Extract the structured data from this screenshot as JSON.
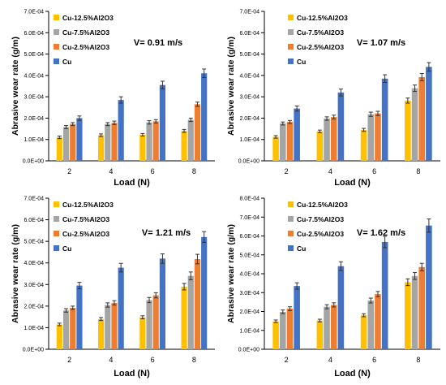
{
  "chart_data": [
    {
      "type": "bar",
      "categories": [
        "2",
        "4",
        "6",
        "8"
      ],
      "series": [
        {
          "name": "Cu-12.5%Al2O3",
          "values": [
            0.00011,
            0.00012,
            0.000122,
            0.00014
          ],
          "errors": [
            6e-06,
            6e-06,
            6e-06,
            7e-06
          ]
        },
        {
          "name": "Cu-7.5%Al2O3",
          "values": [
            0.000158,
            0.000172,
            0.00018,
            0.000192
          ],
          "errors": [
            7e-06,
            7e-06,
            8e-06,
            8e-06
          ]
        },
        {
          "name": "Cu-2.5%Al2O3",
          "values": [
            0.000172,
            0.000178,
            0.000185,
            0.000265
          ],
          "errors": [
            7e-06,
            8e-06,
            8e-06,
            1e-05
          ]
        },
        {
          "name": "Cu",
          "values": [
            0.0002,
            0.000285,
            0.000355,
            0.00041
          ],
          "errors": [
            1e-05,
            1.5e-05,
            1.8e-05,
            2e-05
          ]
        }
      ],
      "ylim": [
        0,
        0.0007
      ],
      "yticks": [
        "0.0E+00",
        "1.0E-04",
        "2.0E-04",
        "3.0E-04",
        "4.0E-04",
        "5.0E-04",
        "6.0E-04",
        "7.0E-04"
      ],
      "xlabel": "Load (N)",
      "ylabel": "Abrasive wear rate (g/m)",
      "annotation": "V= 0.91 m/s",
      "legend": "top-left",
      "grid": false
    },
    {
      "type": "bar",
      "categories": [
        "2",
        "4",
        "6",
        "8"
      ],
      "series": [
        {
          "name": "Cu-12.5%Al2O3",
          "values": [
            0.000112,
            0.000138,
            0.000145,
            0.000282
          ],
          "errors": [
            6e-06,
            6e-06,
            7e-06,
            1.2e-05
          ]
        },
        {
          "name": "Cu-7.5%Al2O3",
          "values": [
            0.000175,
            0.000198,
            0.000218,
            0.00034
          ],
          "errors": [
            7e-06,
            8e-06,
            1e-05,
            1.5e-05
          ]
        },
        {
          "name": "Cu-2.5%Al2O3",
          "values": [
            0.000182,
            0.000205,
            0.000222,
            0.000392
          ],
          "errors": [
            7e-06,
            9e-06,
            1e-05,
            1.7e-05
          ]
        },
        {
          "name": "Cu",
          "values": [
            0.000245,
            0.00032,
            0.000385,
            0.00044
          ],
          "errors": [
            1.2e-05,
            1.6e-05,
            1.8e-05,
            2e-05
          ]
        }
      ],
      "ylim": [
        0,
        0.0007
      ],
      "yticks": [
        "0.0E+00",
        "1.0E-04",
        "2.0E-04",
        "3.0E-04",
        "4.0E-04",
        "5.0E-04",
        "6.0E-04",
        "7.0E-04"
      ],
      "xlabel": "Load (N)",
      "ylabel": "Abrasive wear rate (g/m)",
      "annotation": "V= 1.07 m/s",
      "legend": "top-left",
      "grid": false
    },
    {
      "type": "bar",
      "categories": [
        "2",
        "4",
        "6",
        "8"
      ],
      "series": [
        {
          "name": "Cu-12.5%Al2O3",
          "values": [
            0.000115,
            0.00014,
            0.000148,
            0.00029
          ],
          "errors": [
            6e-06,
            7e-06,
            7e-06,
            1.5e-05
          ]
        },
        {
          "name": "Cu-7.5%Al2O3",
          "values": [
            0.00018,
            0.000205,
            0.000228,
            0.00034
          ],
          "errors": [
            8e-06,
            1e-05,
            1.2e-05,
            1.8e-05
          ]
        },
        {
          "name": "Cu-2.5%Al2O3",
          "values": [
            0.000192,
            0.000215,
            0.00025,
            0.000418
          ],
          "errors": [
            8e-06,
            1e-05,
            1.2e-05,
            2.2e-05
          ]
        },
        {
          "name": "Cu",
          "values": [
            0.000295,
            0.000378,
            0.00042,
            0.00052
          ],
          "errors": [
            1.5e-05,
            2e-05,
            2.2e-05,
            2.5e-05
          ]
        }
      ],
      "ylim": [
        0,
        0.0007
      ],
      "yticks": [
        "0.0E+00",
        "1.0E-04",
        "2.0E-04",
        "3.0E-04",
        "4.0E-04",
        "5.0E-04",
        "6.0E-04",
        "7.0E-04"
      ],
      "xlabel": "Load (N)",
      "ylabel": "Abrasive wear rate (g/m)",
      "annotation": "V= 1.21 m/s",
      "legend": "top-left",
      "grid": false
    },
    {
      "type": "bar",
      "categories": [
        "2",
        "4",
        "6",
        "8"
      ],
      "series": [
        {
          "name": "Cu-12.5%Al2O3",
          "values": [
            0.000148,
            0.000152,
            0.00018,
            0.000355
          ],
          "errors": [
            7e-06,
            7e-06,
            8e-06,
            1.8e-05
          ]
        },
        {
          "name": "Cu-7.5%Al2O3",
          "values": [
            0.000198,
            0.000225,
            0.000258,
            0.000388
          ],
          "errors": [
            1e-05,
            1.1e-05,
            1.3e-05,
            1.8e-05
          ]
        },
        {
          "name": "Cu-2.5%Al2O3",
          "values": [
            0.000215,
            0.000235,
            0.000292,
            0.000435
          ],
          "errors": [
            1e-05,
            1.1e-05,
            1.4e-05,
            2e-05
          ]
        },
        {
          "name": "Cu",
          "values": [
            0.000335,
            0.00044,
            0.000568,
            0.000655
          ],
          "errors": [
            1.7e-05,
            2.3e-05,
            3e-05,
            3.5e-05
          ]
        }
      ],
      "ylim": [
        0,
        0.0008
      ],
      "yticks": [
        "0.0E+00",
        "1.0E-04",
        "2.0E-04",
        "3.0E-04",
        "4.0E-04",
        "5.0E-04",
        "6.0E-04",
        "7.0E-04",
        "8.0E-04"
      ],
      "xlabel": "Load (N)",
      "ylabel": "Abrasive wear rate (g/m)",
      "annotation": "V= 1.62 m/s",
      "legend": "top-left",
      "grid": false
    }
  ],
  "colors": {
    "series": [
      "#FFC000",
      "#A5A5A5",
      "#ED7D31",
      "#4472C4"
    ],
    "axis": "#000000",
    "error_bar": "#333333"
  }
}
